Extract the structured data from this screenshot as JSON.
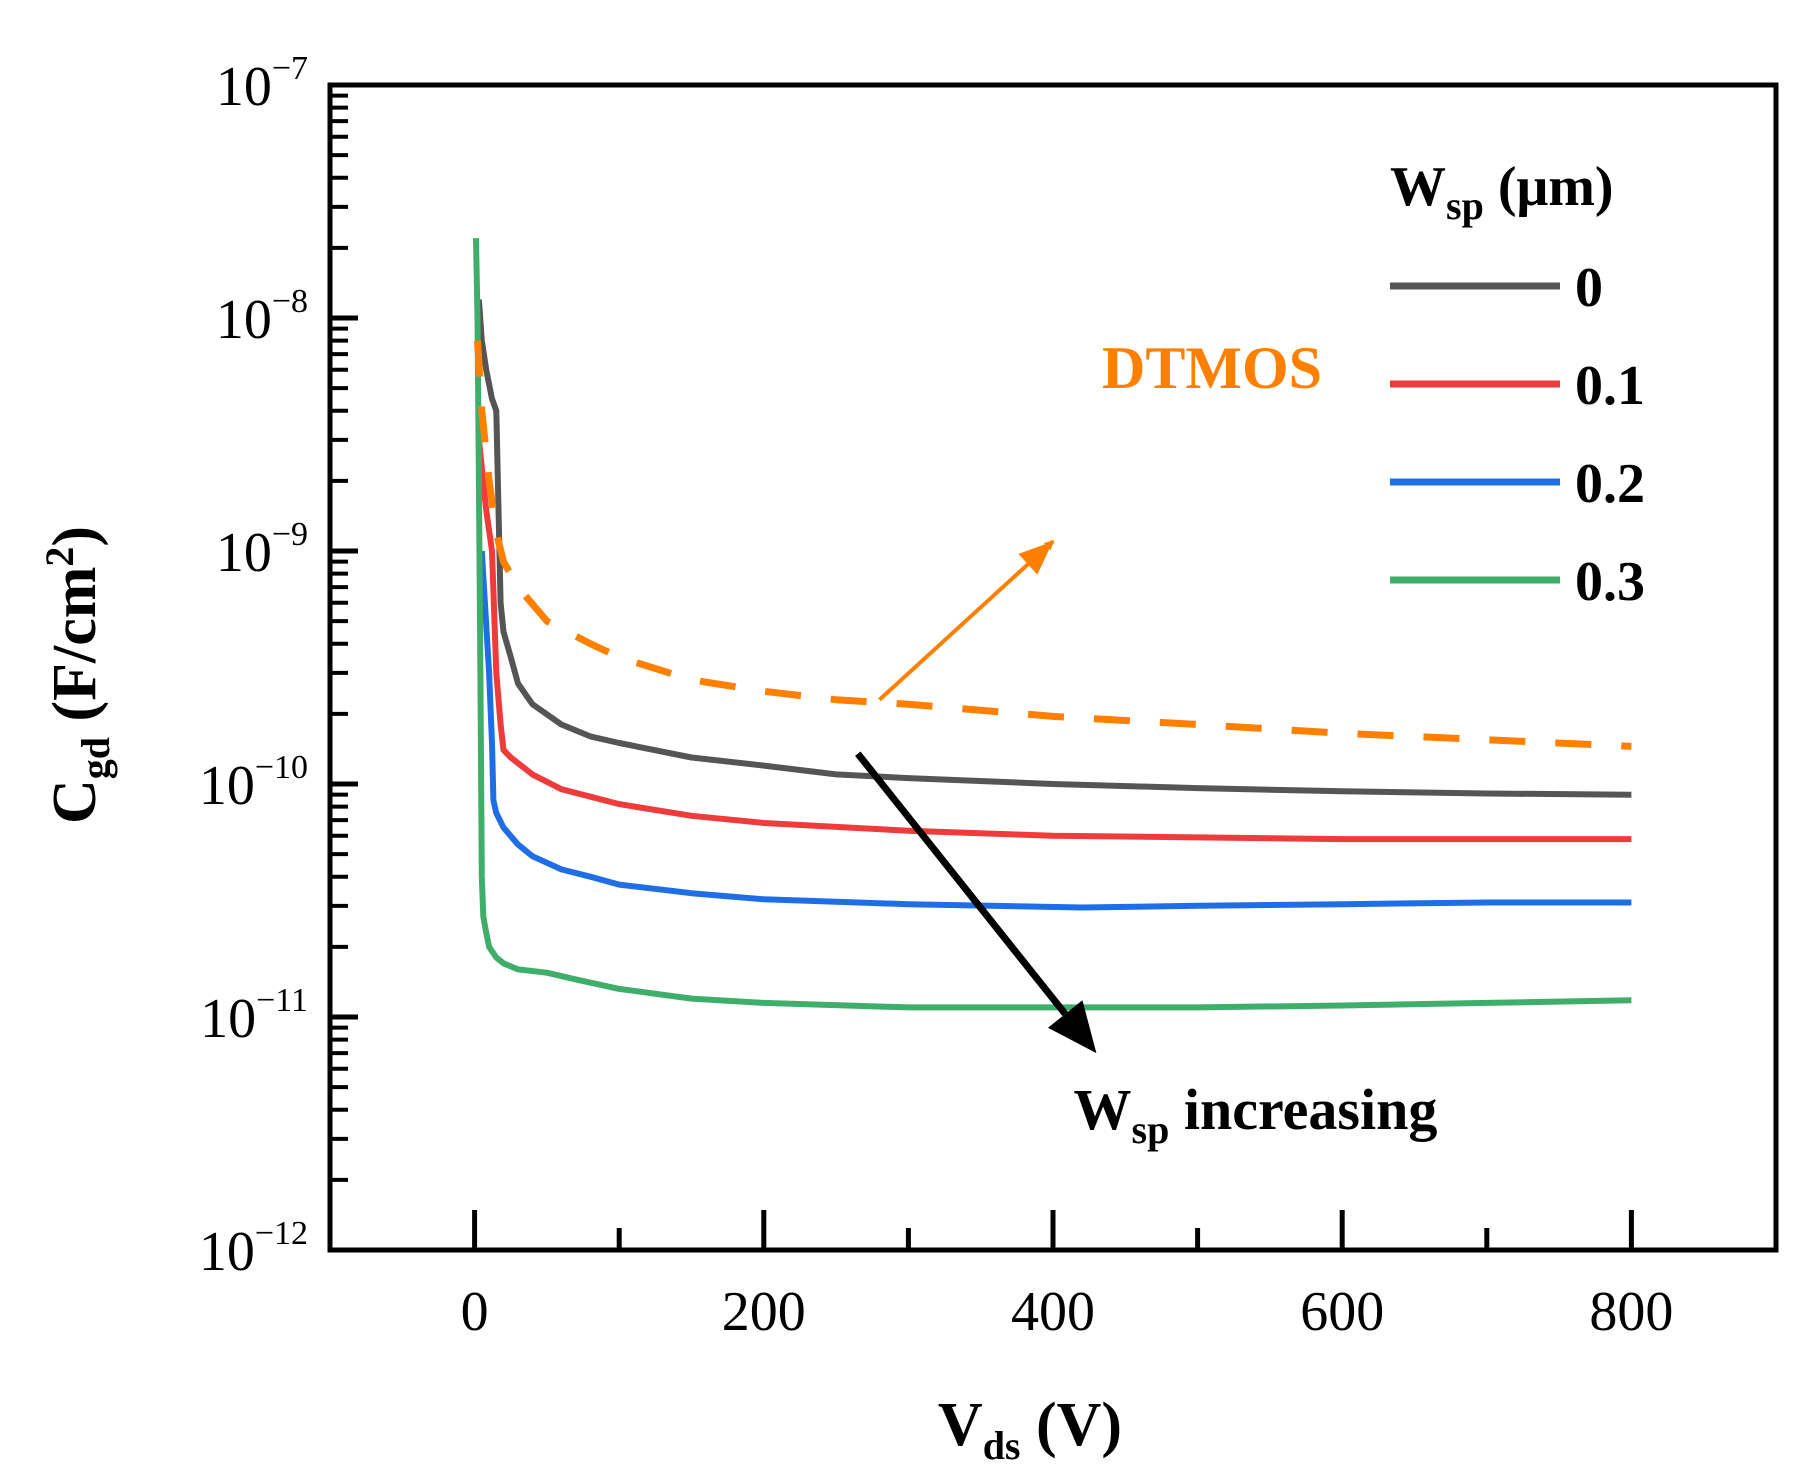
{
  "chart_data": {
    "type": "line",
    "title": "",
    "xlabel": {
      "main": "V",
      "sub": "ds",
      "unit": " (V)"
    },
    "ylabel": {
      "main": "C",
      "sub": "gd",
      "unit_prefix": " (F/cm",
      "unit_sup": "2",
      "unit_suffix": ")"
    },
    "y_scale": "log",
    "xlim": [
      -100,
      900
    ],
    "ylim": [
      1e-12,
      1e-07
    ],
    "x_ticks": [
      0,
      200,
      400,
      600,
      800
    ],
    "x_minor_ticks": [
      100,
      300,
      500,
      700
    ],
    "y_ticks": [
      {
        "value": 1e-12,
        "base": "10",
        "exp": "−12"
      },
      {
        "value": 1e-11,
        "base": "10",
        "exp": "−11"
      },
      {
        "value": 1e-10,
        "base": "10",
        "exp": "−10"
      },
      {
        "value": 1e-09,
        "base": "10",
        "exp": "−9"
      },
      {
        "value": 1e-08,
        "base": "10",
        "exp": "−8"
      },
      {
        "value": 1e-07,
        "base": "10",
        "exp": "−7"
      }
    ],
    "legend": {
      "title_main": "W",
      "title_sub": "sp",
      "title_unit": " (μm)",
      "position": "top-right"
    },
    "series": [
      {
        "name": "0",
        "color": "#555555",
        "dash": "solid",
        "x": [
          3,
          5,
          8,
          12,
          15,
          18,
          20,
          25,
          30,
          40,
          60,
          80,
          100,
          150,
          200,
          250,
          300,
          400,
          500,
          600,
          700,
          800
        ],
        "y": [
          1.2e-08,
          8e-09,
          6e-09,
          4.5e-09,
          4e-09,
          6e-10,
          4.5e-10,
          3.5e-10,
          2.7e-10,
          2.2e-10,
          1.8e-10,
          1.6e-10,
          1.5e-10,
          1.3e-10,
          1.2e-10,
          1.1e-10,
          1.06e-10,
          1e-10,
          9.6e-11,
          9.3e-11,
          9.1e-11,
          9e-11
        ]
      },
      {
        "name": "0.1",
        "color": "#ee3b3b",
        "dash": "solid",
        "x": [
          3,
          8,
          12,
          15,
          18,
          20,
          25,
          40,
          60,
          100,
          150,
          200,
          300,
          400,
          500,
          600,
          700,
          800
        ],
        "y": [
          3e-09,
          1.5e-09,
          1e-09,
          3e-10,
          1.8e-10,
          1.4e-10,
          1.3e-10,
          1.1e-10,
          9.5e-11,
          8.2e-11,
          7.3e-11,
          6.8e-11,
          6.3e-11,
          6e-11,
          5.9e-11,
          5.8e-11,
          5.8e-11,
          5.8e-11
        ]
      },
      {
        "name": "0.2",
        "color": "#1f6ee6",
        "dash": "solid",
        "x": [
          5,
          10,
          12,
          13,
          15,
          20,
          30,
          40,
          60,
          80,
          100,
          150,
          200,
          300,
          420,
          500,
          600,
          700,
          800
        ],
        "y": [
          1e-09,
          3e-10,
          1.5e-10,
          8.5e-11,
          7.5e-11,
          6.5e-11,
          5.5e-11,
          4.9e-11,
          4.3e-11,
          4e-11,
          3.7e-11,
          3.4e-11,
          3.2e-11,
          3.05e-11,
          2.95e-11,
          3e-11,
          3.05e-11,
          3.1e-11,
          3.1e-11
        ]
      },
      {
        "name": "0.3",
        "color": "#3fae6b",
        "dash": "solid",
        "x": [
          1,
          2,
          3,
          4,
          5,
          6,
          8,
          10,
          15,
          20,
          30,
          50,
          70,
          100,
          150,
          200,
          300,
          400,
          500,
          600,
          700,
          800
        ],
        "y": [
          2.2e-08,
          1e-08,
          2e-09,
          3e-10,
          4e-11,
          2.7e-11,
          2.3e-11,
          2e-11,
          1.8e-11,
          1.7e-11,
          1.6e-11,
          1.55e-11,
          1.45e-11,
          1.32e-11,
          1.2e-11,
          1.15e-11,
          1.1e-11,
          1.1e-11,
          1.1e-11,
          1.12e-11,
          1.15e-11,
          1.18e-11
        ]
      },
      {
        "name": "DTMOS",
        "color": "#ff8000",
        "dash": "dashed",
        "x": [
          2,
          5,
          10,
          15,
          20,
          30,
          50,
          80,
          100,
          150,
          200,
          250,
          300,
          400,
          500,
          600,
          700,
          800
        ],
        "y": [
          8e-09,
          4e-09,
          2e-09,
          1.2e-09,
          9e-10,
          7e-10,
          5e-10,
          4e-10,
          3.5e-10,
          2.8e-10,
          2.5e-10,
          2.3e-10,
          2.2e-10,
          1.95e-10,
          1.8e-10,
          1.65e-10,
          1.55e-10,
          1.45e-10
        ]
      }
    ],
    "annotations": [
      {
        "label": "DTMOS",
        "color": "#ff8000",
        "text_at": [
          510,
          5e-09
        ],
        "arrow_from": [
          280,
          2.3e-10
        ],
        "arrow_to": [
          400,
          1.1e-09
        ]
      },
      {
        "label_main": "W",
        "label_sub": "sp",
        "label_rest": " increasing",
        "color": "#000000",
        "text_at": [
          540,
          3.3e-12
        ],
        "arrow_from": [
          265,
          1.35e-10
        ],
        "arrow_to": [
          430,
          7e-12
        ]
      }
    ]
  }
}
